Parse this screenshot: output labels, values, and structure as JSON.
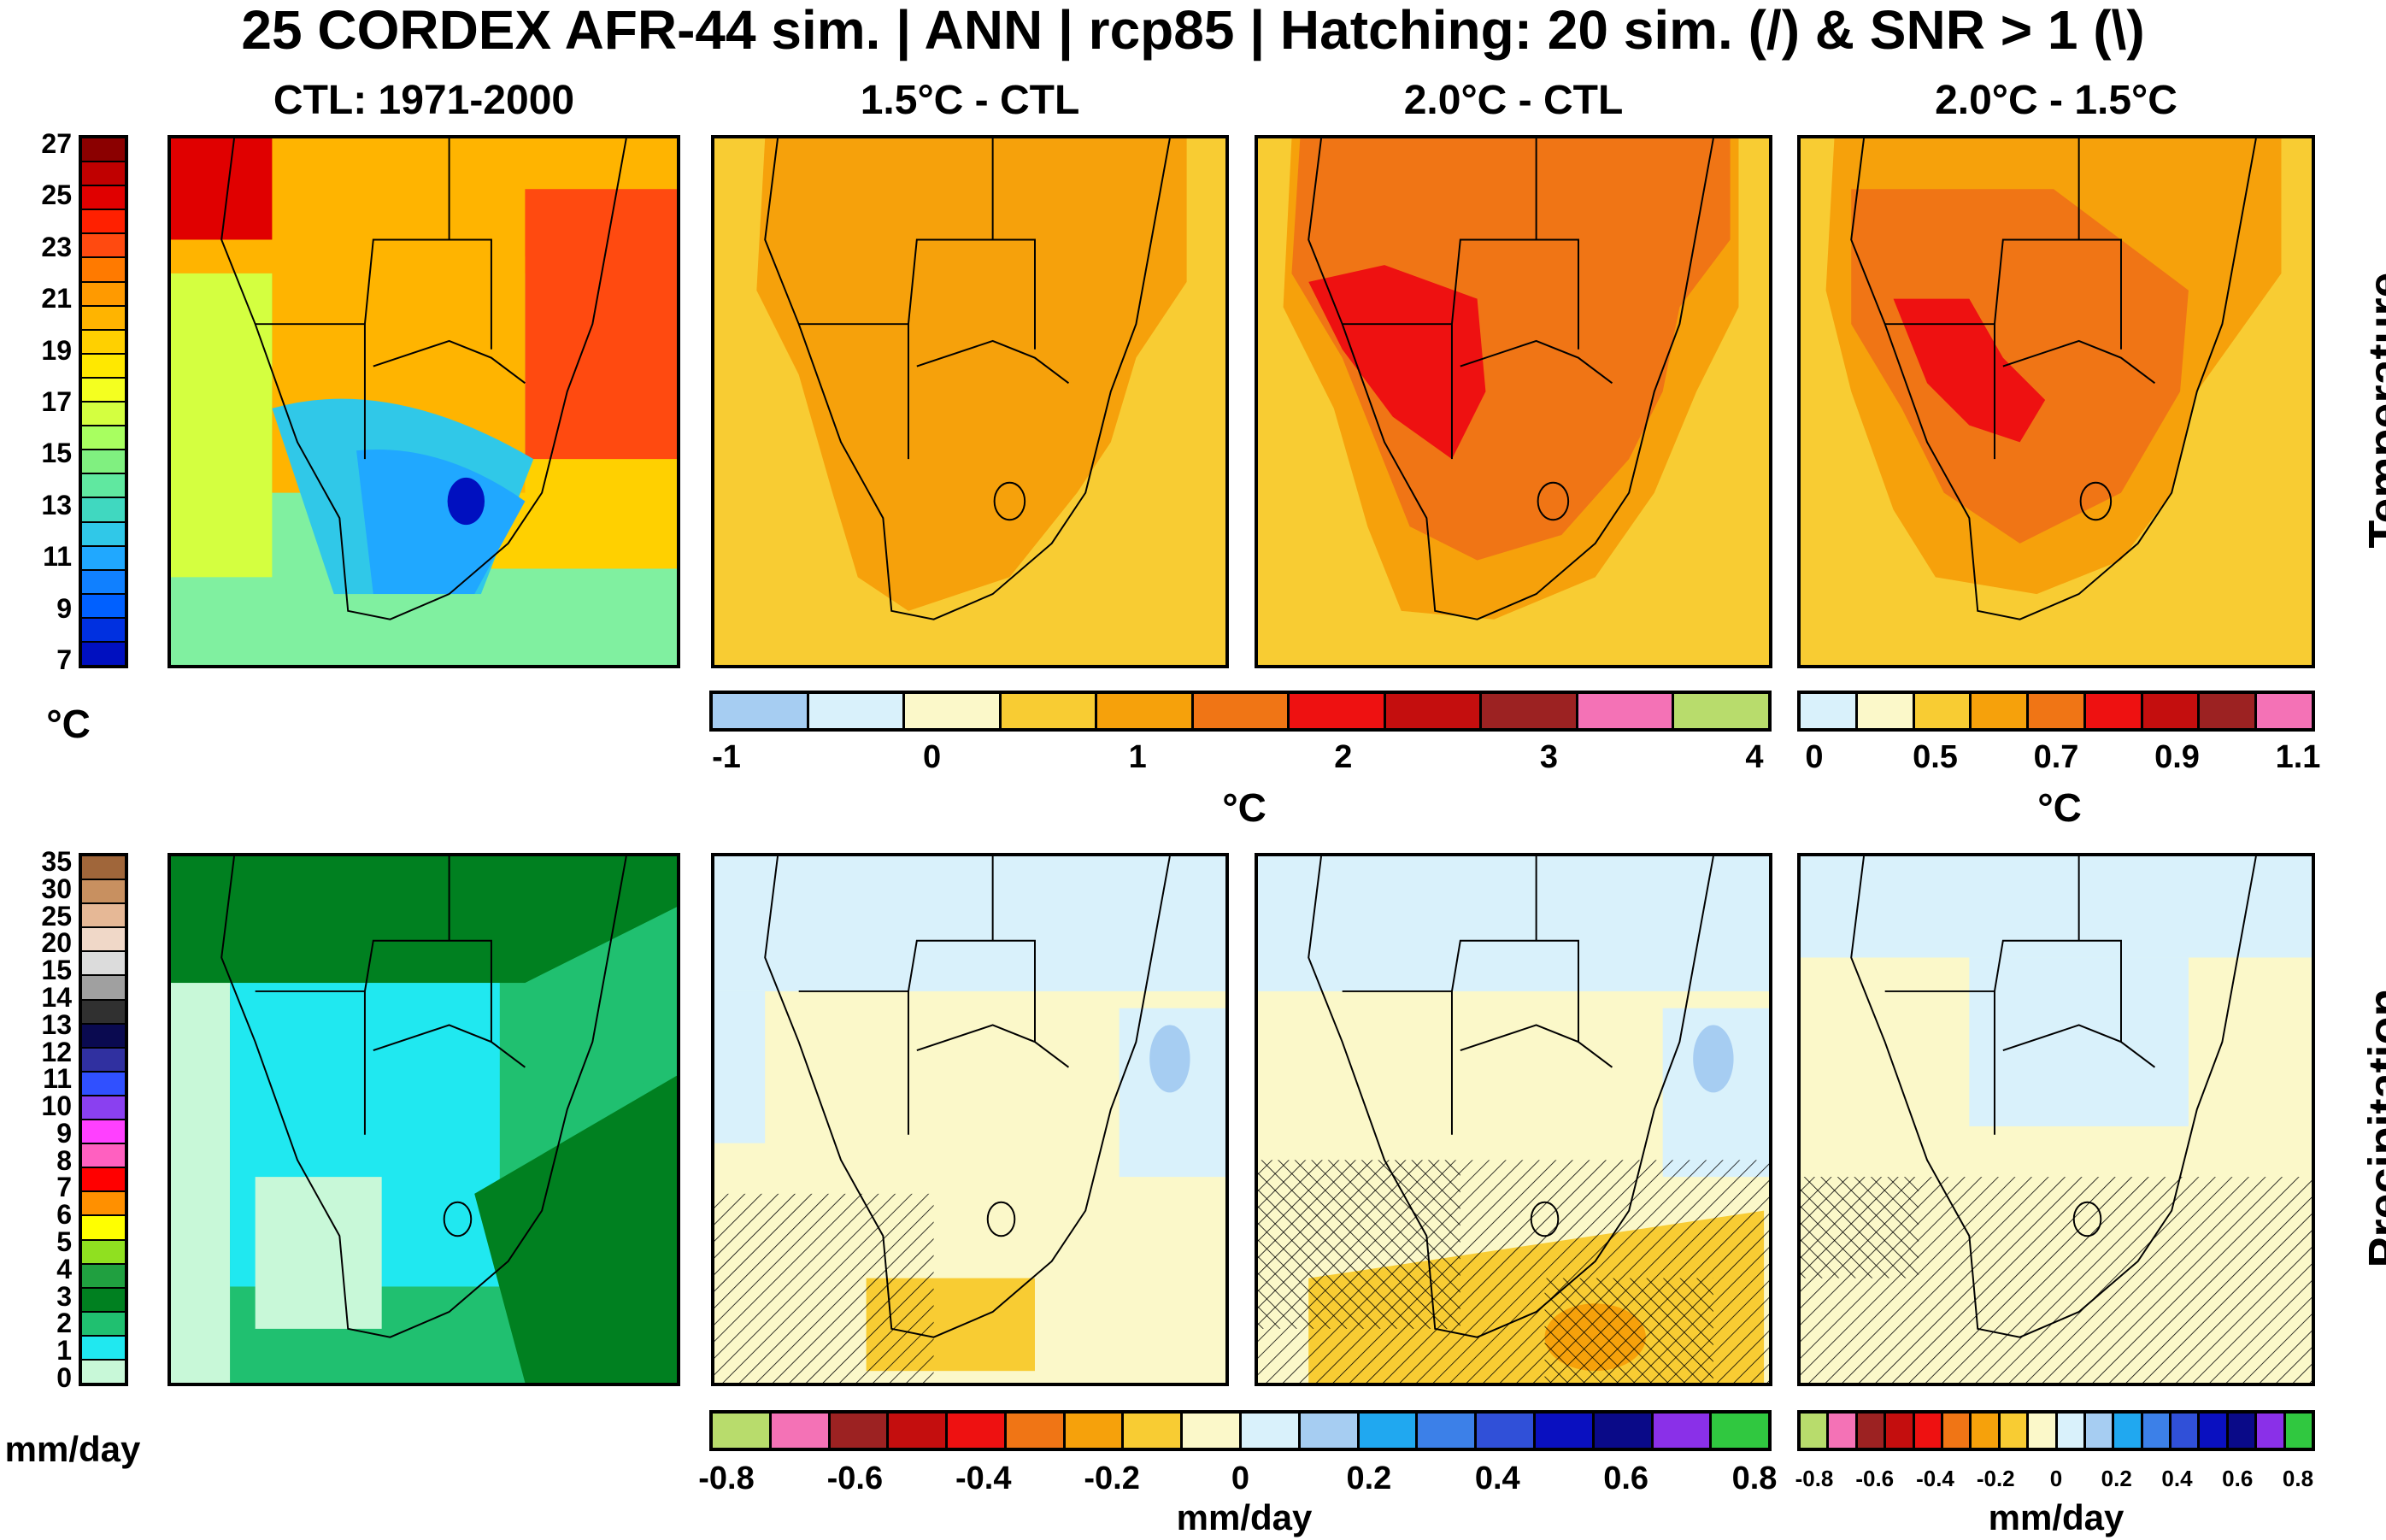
{
  "main_title": "25 CORDEX AFR-44 sim. | ANN | rcp85 | Hatching: 20 sim. (/) & SNR > 1 (\\)",
  "column_titles": [
    "CTL: 1971-2000",
    "1.5°C - CTL",
    "2.0°C - CTL",
    "2.0°C - 1.5°C"
  ],
  "row_labels": [
    "Temperature",
    "Precipitation"
  ],
  "temperature": {
    "ctl_colorbar": {
      "unit": "°C",
      "ticks": [
        "27",
        "25",
        "23",
        "21",
        "19",
        "17",
        "15",
        "13",
        "11",
        "9",
        "7"
      ],
      "colors": [
        "#8b0000",
        "#c00000",
        "#e00000",
        "#ff2000",
        "#ff4a10",
        "#ff7a00",
        "#ff9a00",
        "#ffb400",
        "#ffd000",
        "#ffe800",
        "#f4ff20",
        "#d4ff40",
        "#a8ff60",
        "#80f080",
        "#60e8a0",
        "#40d8c0",
        "#30c8e8",
        "#20a8ff",
        "#1080ff",
        "#0060ff",
        "#0030e0",
        "#0010c0"
      ]
    },
    "diff_colorbar": {
      "unit": "°C",
      "ticks": [
        "-1",
        "0",
        "1",
        "2",
        "3",
        "4"
      ],
      "colors": [
        "#a6cdf2",
        "#d9f1fb",
        "#fbf8c9",
        "#f8cc33",
        "#f6a10b",
        "#f07515",
        "#ee1111",
        "#c40e0e",
        "#9c2222",
        "#f472b6",
        "#b8dc6c"
      ]
    },
    "delta_colorbar": {
      "unit": "°C",
      "ticks": [
        "0",
        "0.5",
        "0.7",
        "0.9",
        "1.1"
      ],
      "colors": [
        "#d9f1fb",
        "#fbf8c9",
        "#f8cc33",
        "#f6a10b",
        "#f07515",
        "#ee1111",
        "#c40e0e",
        "#9c2222",
        "#f472b6"
      ]
    }
  },
  "precipitation": {
    "ctl_colorbar": {
      "unit": "mm/day",
      "ticks": [
        "35",
        "30",
        "25",
        "20",
        "15",
        "14",
        "13",
        "12",
        "11",
        "10",
        "9",
        "8",
        "7",
        "6",
        "5",
        "4",
        "3",
        "2",
        "1",
        "0"
      ],
      "colors": [
        "#a0663a",
        "#c89060",
        "#e6b896",
        "#f0d8c8",
        "#dcdcdc",
        "#a0a0a0",
        "#303030",
        "#0a0a50",
        "#3030a0",
        "#3050ff",
        "#8a40f0",
        "#ff40ff",
        "#ff60c0",
        "#ff0000",
        "#ff9000",
        "#ffff00",
        "#90e020",
        "#20a040",
        "#008020",
        "#20c070",
        "#20e8f0",
        "#c8f8d8"
      ]
    },
    "diff_colorbar": {
      "unit": "mm/day",
      "ticks": [
        "-0.8",
        "-0.6",
        "-0.4",
        "-0.2",
        "0",
        "0.2",
        "0.4",
        "0.6",
        "0.8"
      ],
      "colors": [
        "#b8dc6c",
        "#f472b6",
        "#9c2222",
        "#c40e0e",
        "#ee1111",
        "#f07515",
        "#f6a10b",
        "#f8cc33",
        "#fbf8c9",
        "#d9f1fb",
        "#a6cdf2",
        "#20a8f0",
        "#3c80e8",
        "#3050d8",
        "#0a10c0",
        "#0a0a88",
        "#8a30e8",
        "#30c840"
      ]
    },
    "delta_colorbar": {
      "unit": "mm/day",
      "ticks": [
        "-0.8",
        "-0.6",
        "-0.4",
        "-0.2",
        "0",
        "0.2",
        "0.4",
        "0.6",
        "0.8"
      ],
      "colors": [
        "#b8dc6c",
        "#f472b6",
        "#9c2222",
        "#c40e0e",
        "#ee1111",
        "#f07515",
        "#f6a10b",
        "#f8cc33",
        "#fbf8c9",
        "#d9f1fb",
        "#a6cdf2",
        "#20a8f0",
        "#3c80e8",
        "#3050d8",
        "#0a10c0",
        "#0a0a88",
        "#8a30e8",
        "#30c840"
      ]
    }
  }
}
